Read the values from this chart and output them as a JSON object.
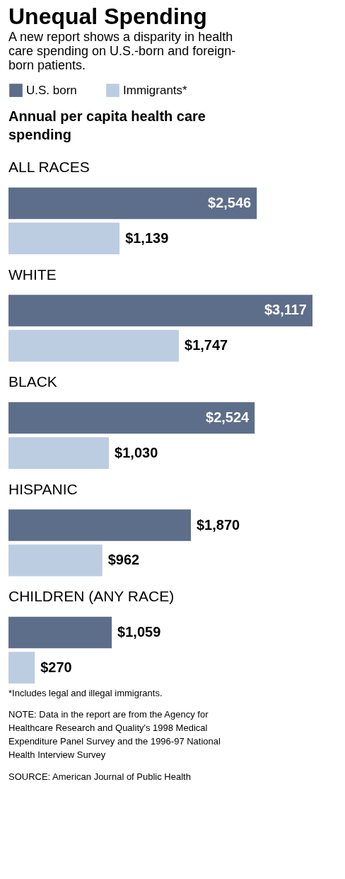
{
  "chart_data": {
    "type": "bar",
    "orientation": "horizontal",
    "title": "Unequal Spending",
    "subtitle": "A new report shows a disparity in health care spending on U.S.-born and foreign-born patients.",
    "ylabel": "Annual per capita health care spending",
    "legend": "top left",
    "categories": [
      "ALL RACES",
      "WHITE",
      "BLACK",
      "HISPANIC",
      "CHILDREN (ANY RACE)"
    ],
    "series": [
      {
        "name": "U.S. born",
        "color": "#5d6e8b",
        "values": [
          2546,
          3117,
          2524,
          1870,
          1059
        ],
        "value_labels": [
          "$2,546",
          "$3,117",
          "$2,524",
          "$1,870",
          "$1,059"
        ]
      },
      {
        "name": "Immigrants*",
        "color": "#bccde2",
        "values": [
          1139,
          1747,
          1030,
          962,
          270
        ],
        "value_labels": [
          "$1,139",
          "$1,747",
          "$1,030",
          "$962",
          "$270"
        ]
      }
    ],
    "annotations": [
      "*Includes legal and illegal immigrants.",
      "NOTE: Data in the report are from the Agency for Healthcare Research and Quality's 1998 Medical Expenditure Panel Survey and the 1996-97 National Health Interview Survey",
      "SOURCE: American Journal of Public Health"
    ]
  }
}
